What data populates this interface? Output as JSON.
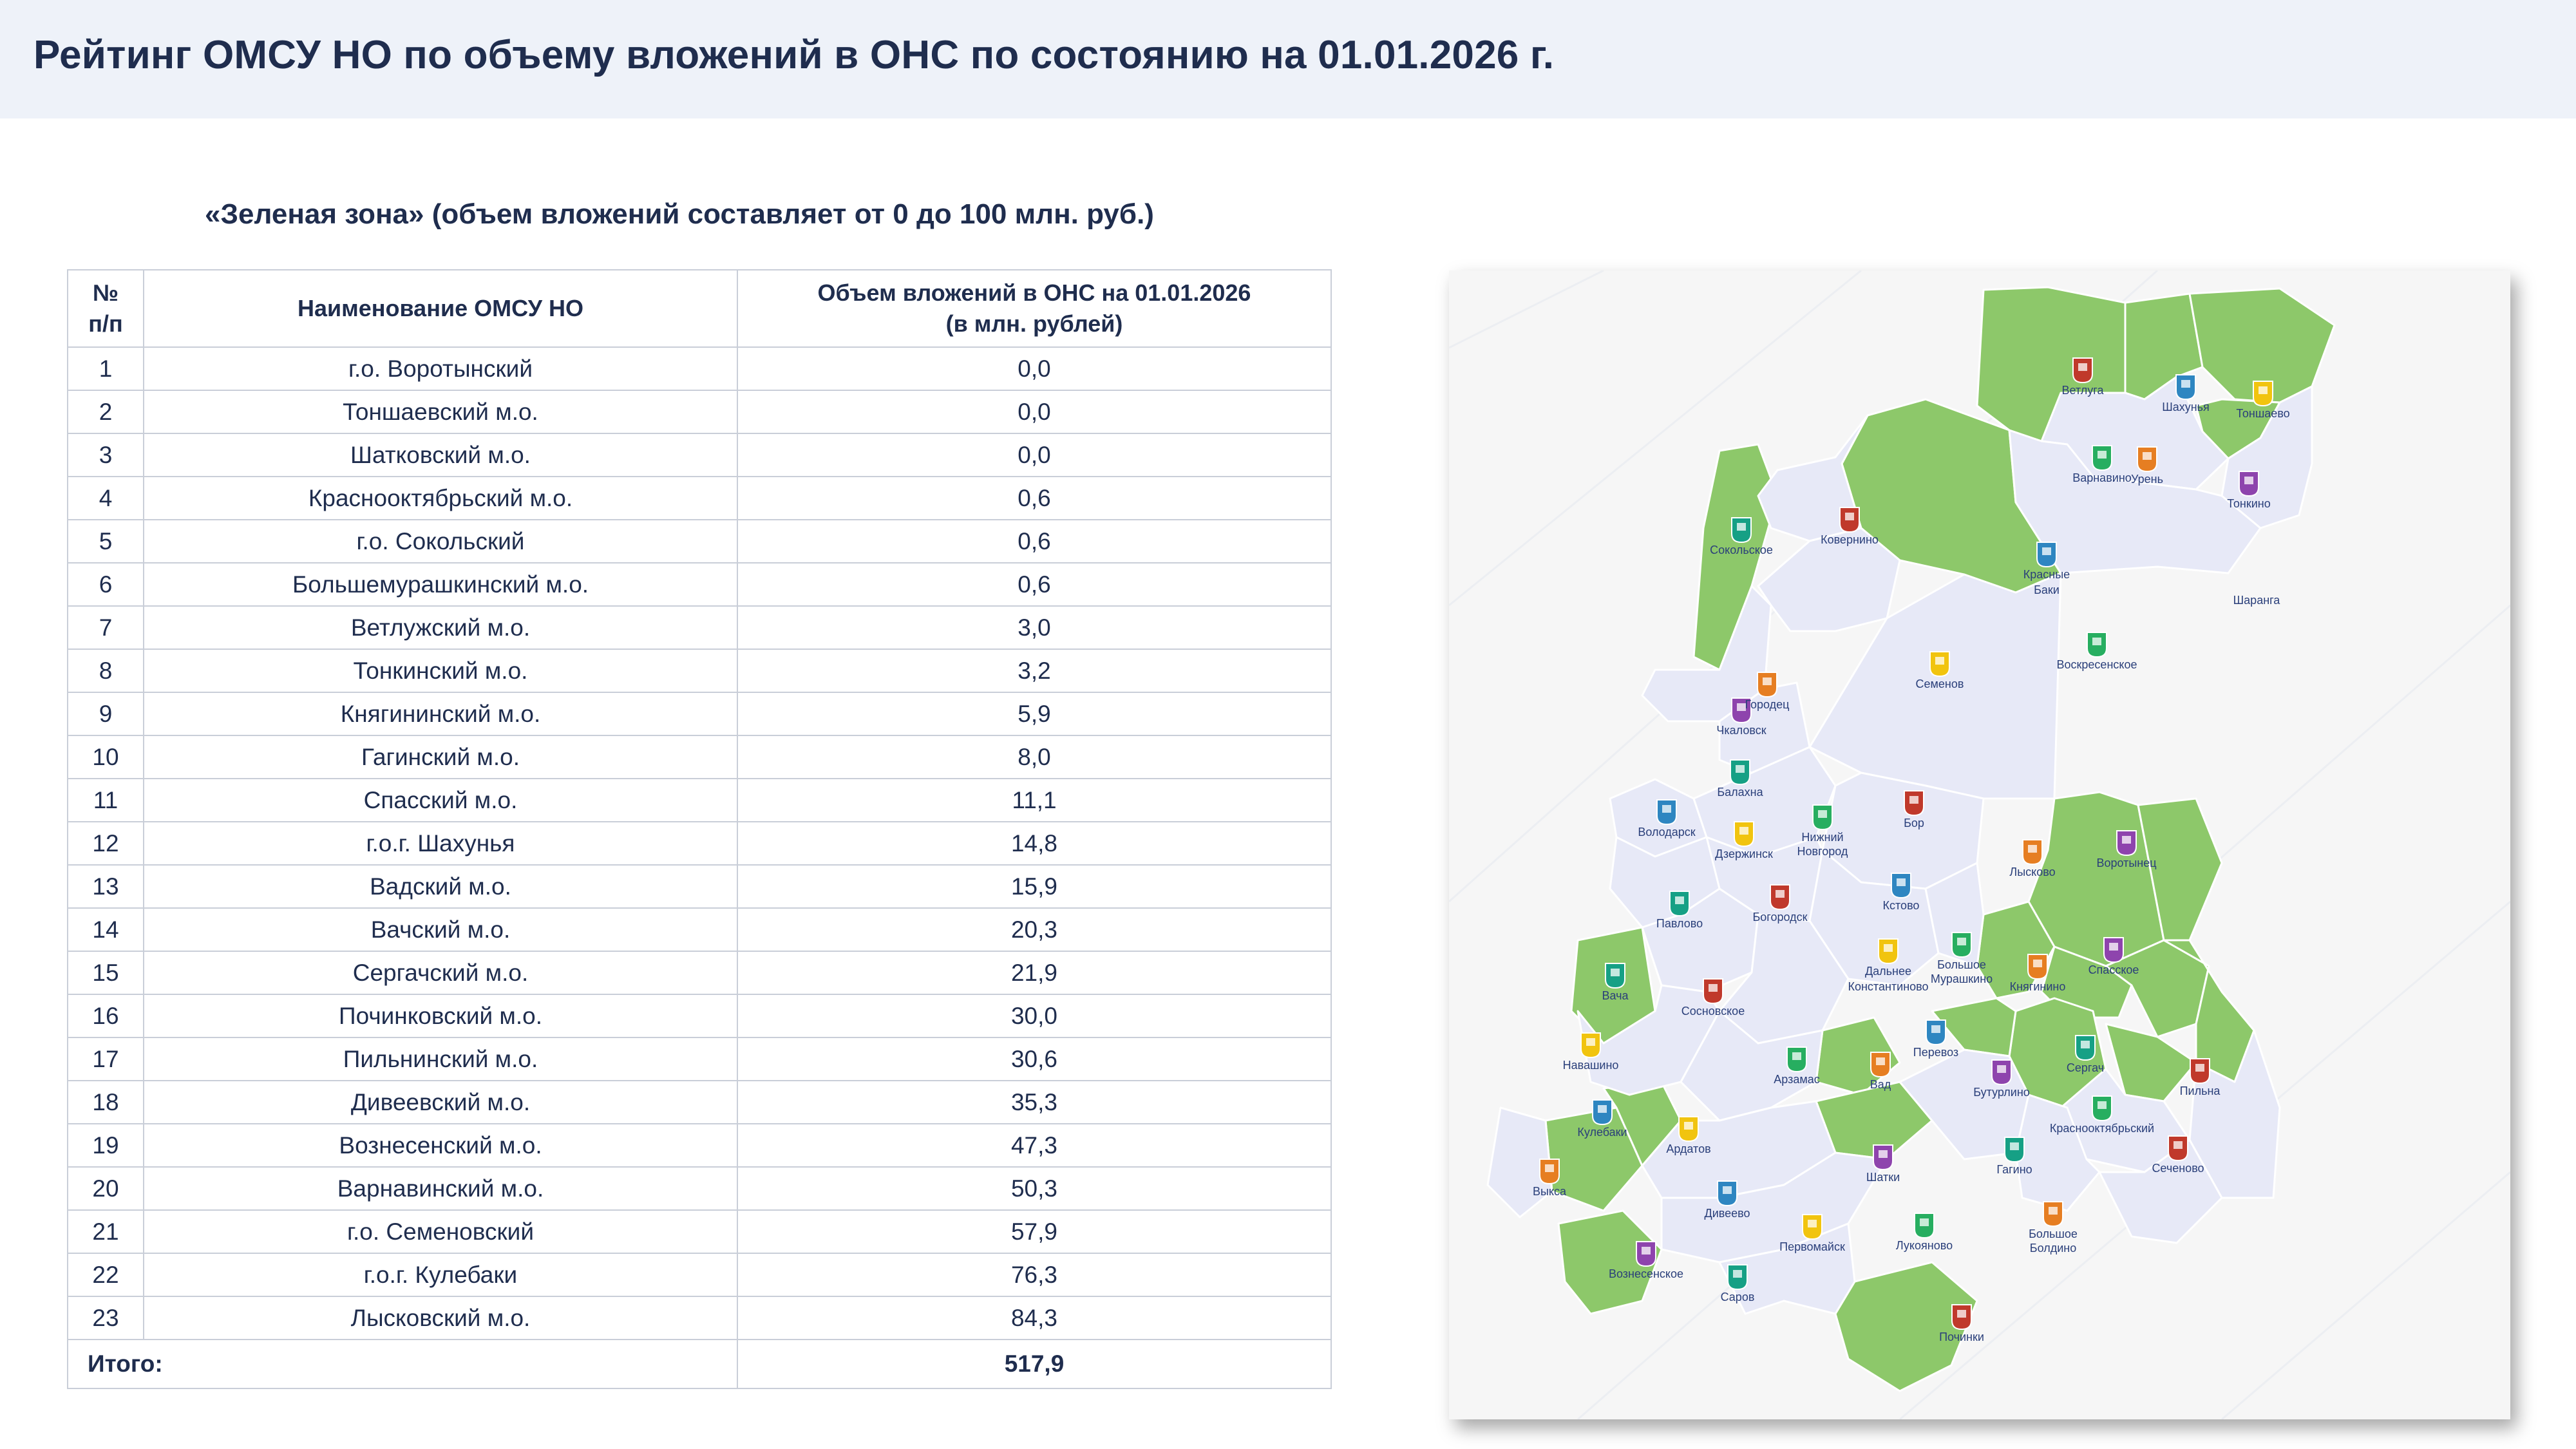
{
  "header": {
    "title": "Рейтинг ОМСУ НО по объему вложений в ОНС по состоянию на 01.01.2026 г."
  },
  "subtitle": "«Зеленая зона» (объем вложений составляет от 0 до 100 млн. руб.)",
  "table": {
    "col_num_line1": "№",
    "col_num_line2": "п/п",
    "col_name": "Наименование ОМСУ НО",
    "col_value_line1": "Объем вложений в ОНС на 01.01.2026",
    "col_value_line2": "(в млн. рублей)",
    "rows": [
      {
        "num": "1",
        "name": "г.о. Воротынский",
        "value": "0,0"
      },
      {
        "num": "2",
        "name": "Тоншаевский м.о.",
        "value": "0,0"
      },
      {
        "num": "3",
        "name": "Шатковский м.о.",
        "value": "0,0"
      },
      {
        "num": "4",
        "name": "Краснооктябрьский м.о.",
        "value": "0,6"
      },
      {
        "num": "5",
        "name": "г.о. Сокольский",
        "value": "0,6"
      },
      {
        "num": "6",
        "name": "Большемурашкинский м.о.",
        "value": "0,6"
      },
      {
        "num": "7",
        "name": "Ветлужский м.о.",
        "value": "3,0"
      },
      {
        "num": "8",
        "name": "Тонкинский м.о.",
        "value": "3,2"
      },
      {
        "num": "9",
        "name": "Княгининский м.о.",
        "value": "5,9"
      },
      {
        "num": "10",
        "name": "Гагинский м.о.",
        "value": "8,0"
      },
      {
        "num": "11",
        "name": "Спасский м.о.",
        "value": "11,1"
      },
      {
        "num": "12",
        "name": "г.о.г. Шахунья",
        "value": "14,8"
      },
      {
        "num": "13",
        "name": "Вадский м.о.",
        "value": "15,9"
      },
      {
        "num": "14",
        "name": "Вачский м.о.",
        "value": "20,3"
      },
      {
        "num": "15",
        "name": "Сергачский м.о.",
        "value": "21,9"
      },
      {
        "num": "16",
        "name": "Починковский м.о.",
        "value": "30,0"
      },
      {
        "num": "17",
        "name": "Пильнинский м.о.",
        "value": "30,6"
      },
      {
        "num": "18",
        "name": "Дивеевский м.о.",
        "value": "35,3"
      },
      {
        "num": "19",
        "name": "Вознесенский м.о.",
        "value": "47,3"
      },
      {
        "num": "20",
        "name": "Варнавинский м.о.",
        "value": "50,3"
      },
      {
        "num": "21",
        "name": "г.о. Семеновский",
        "value": "57,9"
      },
      {
        "num": "22",
        "name": "г.о.г. Кулебаки",
        "value": "76,3"
      },
      {
        "num": "23",
        "name": "Лысковский м.о.",
        "value": "84,3"
      }
    ],
    "total_label": "Итого:",
    "total_value": "517,9"
  },
  "map": {
    "colors": {
      "green": "#8dc86a",
      "other": "#e7e9f7",
      "border": "#ffffff",
      "label": "#2a3f7a"
    },
    "districts": [
      {
        "name": "Ветлуга",
        "green": true
      },
      {
        "name": "Шахунья",
        "green": true
      },
      {
        "name": "Тоншаево",
        "green": true
      },
      {
        "name": "Варнавино",
        "green": true
      },
      {
        "name": "Урень",
        "green": false
      },
      {
        "name": "Тонкино",
        "green": true
      },
      {
        "name": "Сокольское",
        "green": true
      },
      {
        "name": "Ковернино",
        "green": false
      },
      {
        "name": "Красные",
        "green": false
      },
      {
        "name": "Баки",
        "green": false
      },
      {
        "name": "Шаранга",
        "green": false
      },
      {
        "name": "Семенов",
        "green": true
      },
      {
        "name": "Воскресенское",
        "green": false
      },
      {
        "name": "Городец",
        "green": false
      },
      {
        "name": "Чкаловск",
        "green": false
      },
      {
        "name": "Балахна",
        "green": false
      },
      {
        "name": "Бор",
        "green": false
      },
      {
        "name": "Володарск",
        "green": false
      },
      {
        "name": "Дзержинск",
        "green": false
      },
      {
        "name": "Нижний",
        "green": false
      },
      {
        "name": "Новгород",
        "green": false
      },
      {
        "name": "Лысково",
        "green": true
      },
      {
        "name": "Воротынец",
        "green": true
      },
      {
        "name": "Павлово",
        "green": false
      },
      {
        "name": "Богородск",
        "green": false
      },
      {
        "name": "Кстово",
        "green": false
      },
      {
        "name": "Дальнее",
        "green": false
      },
      {
        "name": "Константиново",
        "green": false
      },
      {
        "name": "Большое",
        "green": true
      },
      {
        "name": "Мурашкино",
        "green": true
      },
      {
        "name": "Княгинино",
        "green": true
      },
      {
        "name": "Спасское",
        "green": true
      },
      {
        "name": "Вача",
        "green": true
      },
      {
        "name": "Сосновское",
        "green": false
      },
      {
        "name": "Перевоз",
        "green": false
      },
      {
        "name": "Навашино",
        "green": false
      },
      {
        "name": "Арзамас",
        "green": false
      },
      {
        "name": "Вад",
        "green": true
      },
      {
        "name": "Бутурлино",
        "green": false
      },
      {
        "name": "Сергач",
        "green": true
      },
      {
        "name": "Пильна",
        "green": true
      },
      {
        "name": "Кулебаки",
        "green": true
      },
      {
        "name": "Ардатов",
        "green": false
      },
      {
        "name": "Краснооктябрьский",
        "green": true
      },
      {
        "name": "Выкса",
        "green": false
      },
      {
        "name": "Шатки",
        "green": true
      },
      {
        "name": "Гагино",
        "green": true
      },
      {
        "name": "Сеченово",
        "green": false
      },
      {
        "name": "Дивеево",
        "green": true
      },
      {
        "name": "Первомайск",
        "green": false
      },
      {
        "name": "Лукояново",
        "green": false
      },
      {
        "name": "Большое",
        "green": false
      },
      {
        "name": "Болдино",
        "green": false
      },
      {
        "name": "Вознесенское",
        "green": true
      },
      {
        "name": "Саров",
        "green": false
      },
      {
        "name": "Починки",
        "green": true
      }
    ]
  }
}
